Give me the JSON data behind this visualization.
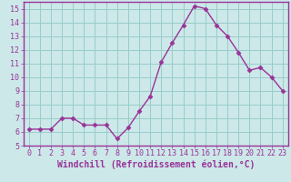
{
  "x": [
    0,
    1,
    2,
    3,
    4,
    5,
    6,
    7,
    8,
    9,
    10,
    11,
    12,
    13,
    14,
    15,
    16,
    17,
    18,
    19,
    20,
    21,
    22,
    23
  ],
  "y": [
    6.2,
    6.2,
    6.2,
    7.0,
    7.0,
    6.5,
    6.5,
    6.5,
    5.5,
    6.3,
    7.5,
    8.6,
    11.1,
    12.5,
    13.8,
    15.2,
    15.0,
    13.8,
    13.0,
    11.8,
    10.5,
    10.7,
    10.0,
    9.0
  ],
  "line_color": "#993399",
  "marker": "D",
  "marker_size": 2.5,
  "bg_color": "#cce8e8",
  "grid_color": "#99cccc",
  "xlabel": "Windchill (Refroidissement éolien,°C)",
  "xlabel_color": "#993399",
  "xlabel_bg": "#cce8e8",
  "xlim": [
    -0.5,
    23.5
  ],
  "ylim": [
    5,
    15.5
  ],
  "yticks": [
    5,
    6,
    7,
    8,
    9,
    10,
    11,
    12,
    13,
    14,
    15
  ],
  "xticks": [
    0,
    1,
    2,
    3,
    4,
    5,
    6,
    7,
    8,
    9,
    10,
    11,
    12,
    13,
    14,
    15,
    16,
    17,
    18,
    19,
    20,
    21,
    22,
    23
  ],
  "spine_color": "#993399",
  "tick_color": "#993399",
  "tick_fontsize": 6,
  "xlabel_fontsize": 7
}
